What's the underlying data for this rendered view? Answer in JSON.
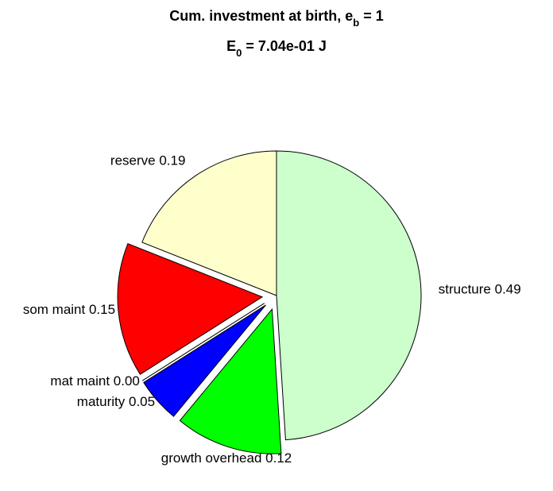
{
  "chart_data": {
    "type": "pie",
    "title": [
      "Cum. investment at birth, e",
      "b",
      " = 1"
    ],
    "subtitle": [
      "E",
      "0",
      " = 7.04e-01 J"
    ],
    "categories": [
      "structure",
      "growth overhead",
      "maturity",
      "mat maint",
      "som maint",
      "reserve"
    ],
    "values": [
      0.49,
      0.12,
      0.05,
      0.0,
      0.15,
      0.19
    ],
    "value_labels": [
      "0.49",
      "0.12",
      "0.05",
      "0.00",
      "0.15",
      "0.19"
    ],
    "colors": [
      "#ccffcc",
      "#00ff00",
      "#0000ff",
      "#000000",
      "#ff0000",
      "#ffffcc"
    ],
    "explode": [
      false,
      true,
      true,
      true,
      true,
      false
    ]
  }
}
